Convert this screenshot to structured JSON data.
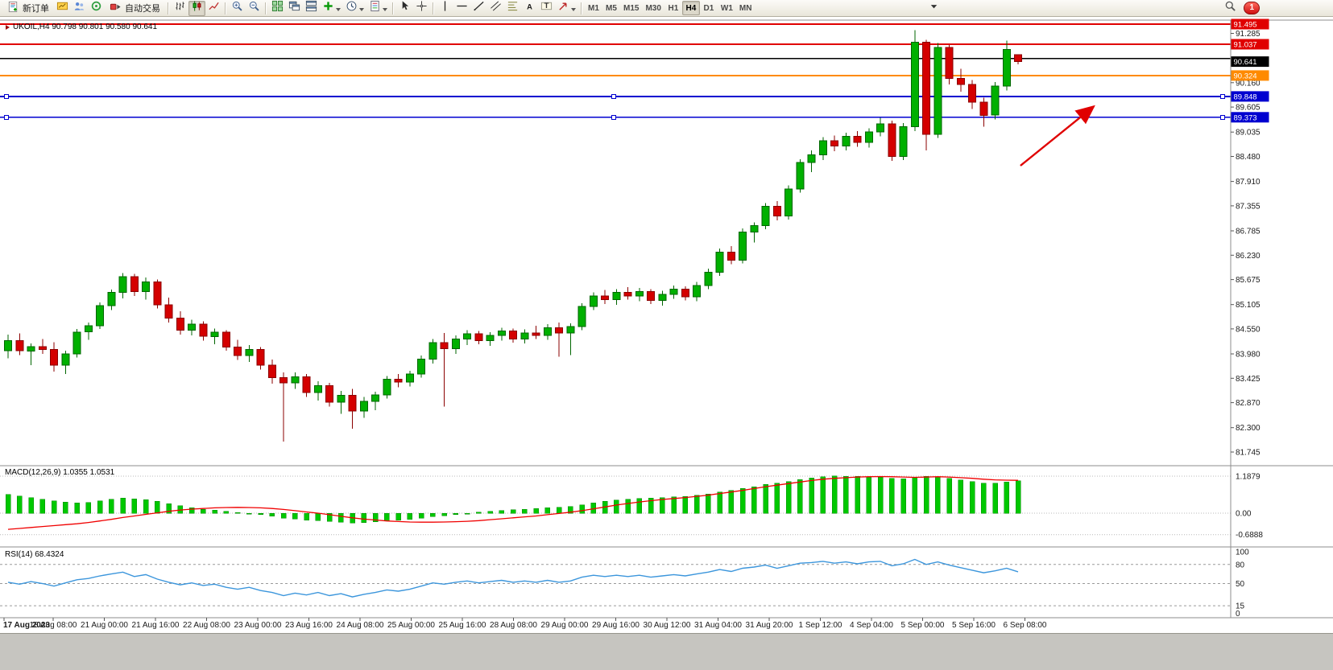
{
  "toolbar": {
    "new_order_label": "新订单",
    "autotrading_label": "自动交易",
    "active_timeframe": "H4",
    "notification_count": "1",
    "items": [
      {
        "kind": "button",
        "name": "new-order-button",
        "icon": "new-order-icon",
        "label": "新订单"
      },
      {
        "kind": "icon",
        "name": "charts-window-button",
        "icon": "chart-window-icon"
      },
      {
        "kind": "icon",
        "name": "market-watch-button",
        "icon": "market-watch-icon"
      },
      {
        "kind": "icon",
        "name": "data-window-button",
        "icon": "data-window-icon"
      },
      {
        "kind": "button",
        "name": "autotrading-button",
        "icon": "autotrading-icon",
        "label": "自动交易"
      },
      {
        "kind": "sep"
      },
      {
        "kind": "icon",
        "name": "bar-chart-button",
        "icon": "bar-chart-icon"
      },
      {
        "kind": "icon",
        "name": "candlestick-chart-button",
        "icon": "candlestick-chart-icon",
        "active": true
      },
      {
        "kind": "icon",
        "name": "line-chart-button",
        "icon": "line-chart-icon"
      },
      {
        "kind": "sep"
      },
      {
        "kind": "icon",
        "name": "zoom-in-button",
        "icon": "zoom-in-icon"
      },
      {
        "kind": "icon",
        "name": "zoom-out-button",
        "icon": "zoom-out-icon"
      },
      {
        "kind": "sep"
      },
      {
        "kind": "icon",
        "name": "tile-windows-button",
        "icon": "tile-windows-icon"
      },
      {
        "kind": "icon",
        "name": "cascade-windows-button",
        "icon": "cascade-windows-icon"
      },
      {
        "kind": "icon",
        "name": "arrange-windows-button",
        "icon": "arrange-windows-icon"
      },
      {
        "kind": "icon",
        "name": "indicators-button",
        "icon": "indicators-icon",
        "caret": true
      },
      {
        "kind": "icon",
        "name": "periods-button",
        "icon": "periods-icon",
        "caret": true
      },
      {
        "kind": "icon",
        "name": "templates-button",
        "icon": "templates-icon",
        "caret": true
      },
      {
        "kind": "sep"
      },
      {
        "kind": "icon",
        "name": "cursor-button",
        "icon": "cursor-icon"
      },
      {
        "kind": "icon",
        "name": "crosshair-button",
        "icon": "crosshair-icon"
      },
      {
        "kind": "sep"
      },
      {
        "kind": "icon",
        "name": "vertical-line-button",
        "icon": "vertical-line-icon"
      },
      {
        "kind": "icon",
        "name": "horizontal-line-button",
        "icon": "horizontal-line-icon"
      },
      {
        "kind": "icon",
        "name": "trendline-button",
        "icon": "trendline-icon"
      },
      {
        "kind": "icon",
        "name": "channel-button",
        "icon": "channel-icon"
      },
      {
        "kind": "icon",
        "name": "fibonacci-button",
        "icon": "fibonacci-icon"
      },
      {
        "kind": "icon",
        "name": "text-button",
        "icon": "text-icon"
      },
      {
        "kind": "icon",
        "name": "text-label-button",
        "icon": "text-label-icon"
      },
      {
        "kind": "icon",
        "name": "shapes-button",
        "icon": "shapes-icon",
        "caret": true
      },
      {
        "kind": "sep"
      },
      {
        "kind": "tf",
        "name": "timeframe-m1-button",
        "label": "M1"
      },
      {
        "kind": "tf",
        "name": "timeframe-m5-button",
        "label": "M5"
      },
      {
        "kind": "tf",
        "name": "timeframe-m15-button",
        "label": "M15"
      },
      {
        "kind": "tf",
        "name": "timeframe-m30-button",
        "label": "M30"
      },
      {
        "kind": "tf",
        "name": "timeframe-h1-button",
        "label": "H1"
      },
      {
        "kind": "tf",
        "name": "timeframe-h4-button",
        "label": "H4"
      },
      {
        "kind": "tf",
        "name": "timeframe-d1-button",
        "label": "D1"
      },
      {
        "kind": "tf",
        "name": "timeframe-w1-button",
        "label": "W1"
      },
      {
        "kind": "tf",
        "name": "timeframe-mn-button",
        "label": "MN"
      },
      {
        "kind": "overflow",
        "name": "toolbar-overflow-button",
        "icon": "chevron-down-icon"
      },
      {
        "kind": "icon",
        "name": "search-button",
        "icon": "search-icon",
        "right": true
      },
      {
        "kind": "badge",
        "name": "notifications-badge",
        "label": "1"
      }
    ]
  },
  "chart": {
    "title": "UKOIL,H4 90.798 90.801 90.580 90.641"
  },
  "indicators": {
    "macd_header": "MACD(12,26,9) 1.0355 1.0531",
    "rsi_header": "RSI(14) 68.4324"
  },
  "chart_data": {
    "type": "candlestick",
    "symbol": "UKOIL",
    "period": "H4",
    "ohlc_current": {
      "open": 90.798,
      "high": 90.801,
      "low": 90.58,
      "close": 90.641
    },
    "current_price": 90.641,
    "price_range": [
      81.745,
      91.495
    ],
    "price_axis_ticks": [
      91.285,
      90.16,
      89.605,
      89.035,
      88.48,
      87.91,
      87.355,
      86.785,
      86.23,
      85.675,
      85.105,
      84.55,
      83.98,
      83.425,
      82.87,
      82.3,
      81.745
    ],
    "lines": [
      {
        "price": 91.495,
        "color": "#e00000",
        "width": 2.2,
        "label": true
      },
      {
        "price": 91.037,
        "color": "#e00000",
        "width": 1.6,
        "label": true
      },
      {
        "price": 90.71,
        "color": "#000000",
        "width": 1.6,
        "label": false
      },
      {
        "price": 90.324,
        "color": "#ff8a00",
        "width": 2.0,
        "label": true
      },
      {
        "price": 89.848,
        "color": "#0000d0",
        "width": 1.8,
        "label": true,
        "handles": true
      },
      {
        "price": 89.373,
        "color": "#0000d0",
        "width": 1.8,
        "label": true,
        "handles": true
      }
    ],
    "annotations": [
      {
        "type": "arrow",
        "color": "#e00000",
        "from": {
          "index": 88.2,
          "price": 88.27
        },
        "to": {
          "index": 94.6,
          "price": 89.62
        }
      }
    ],
    "time_labels": [
      "17 Aug 2023",
      "18 Aug 08:00",
      "21 Aug 00:00",
      "21 Aug 16:00",
      "22 Aug 08:00",
      "23 Aug 00:00",
      "23 Aug 16:00",
      "24 Aug 08:00",
      "25 Aug 00:00",
      "25 Aug 16:00",
      "28 Aug 08:00",
      "29 Aug 00:00",
      "29 Aug 16:00",
      "30 Aug 12:00",
      "31 Aug 04:00",
      "31 Aug 20:00",
      "1 Sep 12:00",
      "4 Sep 04:00",
      "5 Sep 00:00",
      "5 Sep 16:00",
      "6 Sep 08:00"
    ],
    "candles": [
      [
        84.05,
        84.42,
        83.88,
        84.28
      ],
      [
        84.28,
        84.45,
        83.95,
        84.05
      ],
      [
        84.05,
        84.22,
        83.72,
        84.15
      ],
      [
        84.15,
        84.32,
        83.98,
        84.08
      ],
      [
        84.08,
        84.25,
        83.58,
        83.72
      ],
      [
        83.72,
        84.05,
        83.52,
        83.98
      ],
      [
        83.98,
        84.55,
        83.9,
        84.48
      ],
      [
        84.48,
        84.7,
        84.3,
        84.62
      ],
      [
        84.62,
        85.15,
        84.55,
        85.08
      ],
      [
        85.08,
        85.45,
        84.98,
        85.38
      ],
      [
        85.38,
        85.82,
        85.25,
        85.74
      ],
      [
        85.74,
        85.8,
        85.3,
        85.4
      ],
      [
        85.4,
        85.72,
        85.22,
        85.62
      ],
      [
        85.62,
        85.68,
        85.02,
        85.1
      ],
      [
        85.1,
        85.26,
        84.7,
        84.8
      ],
      [
        84.8,
        84.95,
        84.42,
        84.52
      ],
      [
        84.52,
        84.76,
        84.4,
        84.66
      ],
      [
        84.66,
        84.72,
        84.28,
        84.38
      ],
      [
        84.38,
        84.56,
        84.2,
        84.48
      ],
      [
        84.48,
        84.52,
        84.05,
        84.14
      ],
      [
        84.14,
        84.3,
        83.84,
        83.94
      ],
      [
        83.94,
        84.18,
        83.8,
        84.08
      ],
      [
        84.08,
        84.14,
        83.62,
        83.72
      ],
      [
        83.72,
        83.85,
        83.3,
        83.44
      ],
      [
        83.44,
        83.56,
        81.98,
        83.32
      ],
      [
        83.32,
        83.56,
        83.18,
        83.46
      ],
      [
        83.46,
        83.52,
        83.0,
        83.1
      ],
      [
        83.1,
        83.36,
        82.92,
        83.26
      ],
      [
        83.26,
        83.32,
        82.78,
        82.88
      ],
      [
        82.88,
        83.14,
        82.62,
        83.04
      ],
      [
        83.04,
        83.18,
        82.28,
        82.68
      ],
      [
        82.68,
        83.0,
        82.52,
        82.9
      ],
      [
        82.9,
        83.12,
        82.7,
        83.05
      ],
      [
        83.05,
        83.48,
        82.96,
        83.4
      ],
      [
        83.4,
        83.52,
        83.22,
        83.34
      ],
      [
        83.34,
        83.6,
        83.24,
        83.52
      ],
      [
        83.52,
        83.94,
        83.44,
        83.86
      ],
      [
        83.86,
        84.32,
        83.76,
        84.24
      ],
      [
        84.24,
        84.46,
        82.78,
        84.1
      ],
      [
        84.1,
        84.4,
        83.98,
        84.32
      ],
      [
        84.32,
        84.52,
        84.18,
        84.44
      ],
      [
        84.44,
        84.5,
        84.2,
        84.28
      ],
      [
        84.28,
        84.48,
        84.16,
        84.4
      ],
      [
        84.4,
        84.58,
        84.28,
        84.5
      ],
      [
        84.5,
        84.56,
        84.24,
        84.32
      ],
      [
        84.32,
        84.54,
        84.22,
        84.46
      ],
      [
        84.46,
        84.62,
        84.32,
        84.4
      ],
      [
        84.4,
        84.66,
        84.3,
        84.58
      ],
      [
        84.58,
        84.7,
        83.92,
        84.46
      ],
      [
        84.46,
        84.68,
        83.95,
        84.6
      ],
      [
        84.6,
        85.14,
        84.52,
        85.06
      ],
      [
        85.06,
        85.38,
        84.98,
        85.3
      ],
      [
        85.3,
        85.44,
        85.12,
        85.22
      ],
      [
        85.22,
        85.46,
        85.1,
        85.38
      ],
      [
        85.38,
        85.5,
        85.22,
        85.3
      ],
      [
        85.3,
        85.48,
        85.18,
        85.4
      ],
      [
        85.4,
        85.46,
        85.12,
        85.2
      ],
      [
        85.2,
        85.42,
        85.08,
        85.34
      ],
      [
        85.34,
        85.54,
        85.24,
        85.46
      ],
      [
        85.46,
        85.52,
        85.2,
        85.28
      ],
      [
        85.28,
        85.62,
        85.18,
        85.54
      ],
      [
        85.54,
        85.92,
        85.46,
        85.84
      ],
      [
        85.84,
        86.38,
        85.76,
        86.3
      ],
      [
        86.3,
        86.44,
        86.02,
        86.12
      ],
      [
        86.12,
        86.84,
        86.04,
        86.76
      ],
      [
        86.76,
        86.98,
        86.52,
        86.9
      ],
      [
        86.9,
        87.42,
        86.82,
        87.34
      ],
      [
        87.34,
        87.46,
        87.02,
        87.12
      ],
      [
        87.12,
        87.82,
        87.04,
        87.74
      ],
      [
        87.74,
        88.42,
        87.66,
        88.34
      ],
      [
        88.34,
        88.62,
        88.12,
        88.52
      ],
      [
        88.52,
        88.92,
        88.4,
        88.84
      ],
      [
        88.84,
        88.96,
        88.6,
        88.72
      ],
      [
        88.72,
        89.02,
        88.62,
        88.94
      ],
      [
        88.94,
        89.06,
        88.7,
        88.8
      ],
      [
        88.8,
        89.12,
        88.68,
        89.04
      ],
      [
        89.04,
        89.36,
        88.94,
        89.22
      ],
      [
        89.22,
        89.3,
        88.38,
        88.48
      ],
      [
        88.48,
        89.24,
        88.4,
        89.16
      ],
      [
        89.16,
        91.36,
        89.06,
        91.08
      ],
      [
        91.08,
        91.14,
        88.62,
        88.98
      ],
      [
        88.98,
        91.06,
        88.9,
        90.96
      ],
      [
        90.96,
        91.02,
        90.12,
        90.26
      ],
      [
        90.26,
        90.48,
        89.96,
        90.12
      ],
      [
        90.12,
        90.22,
        89.56,
        89.72
      ],
      [
        89.72,
        89.82,
        89.16,
        89.42
      ],
      [
        89.42,
        90.18,
        89.32,
        90.08
      ],
      [
        90.08,
        91.12,
        89.98,
        90.92
      ],
      [
        90.798,
        90.801,
        90.58,
        90.641
      ]
    ],
    "macd": {
      "name": "MACD",
      "params": "12,26,9",
      "value": 1.0355,
      "signal_value": 1.0531,
      "scale": [
        {
          "v": 1.1879,
          "label": "1.1879"
        },
        {
          "v": 0,
          "label": "0.00"
        },
        {
          "v": -0.6888,
          "label": "-0.6888"
        }
      ],
      "histogram": [
        0.6,
        0.55,
        0.5,
        0.45,
        0.4,
        0.36,
        0.33,
        0.35,
        0.4,
        0.45,
        0.48,
        0.46,
        0.43,
        0.38,
        0.31,
        0.24,
        0.18,
        0.13,
        0.1,
        0.06,
        0.02,
        -0.01,
        -0.05,
        -0.1,
        -0.16,
        -0.19,
        -0.22,
        -0.24,
        -0.27,
        -0.29,
        -0.31,
        -0.3,
        -0.28,
        -0.25,
        -0.22,
        -0.2,
        -0.16,
        -0.11,
        -0.08,
        -0.04,
        0.0,
        0.03,
        0.06,
        0.09,
        0.11,
        0.13,
        0.15,
        0.17,
        0.19,
        0.22,
        0.27,
        0.33,
        0.38,
        0.42,
        0.45,
        0.47,
        0.48,
        0.5,
        0.52,
        0.54,
        0.57,
        0.62,
        0.68,
        0.73,
        0.79,
        0.85,
        0.92,
        0.96,
        1.01,
        1.08,
        1.13,
        1.17,
        1.19,
        1.185,
        1.18,
        1.17,
        1.16,
        1.12,
        1.1,
        1.15,
        1.18,
        1.16,
        1.12,
        1.07,
        1.02,
        0.97,
        0.96,
        1.0,
        1.0355
      ],
      "signal": [
        -0.52,
        -0.49,
        -0.46,
        -0.43,
        -0.4,
        -0.37,
        -0.34,
        -0.3,
        -0.25,
        -0.2,
        -0.14,
        -0.09,
        -0.04,
        0.01,
        0.06,
        0.1,
        0.13,
        0.15,
        0.17,
        0.18,
        0.185,
        0.18,
        0.17,
        0.15,
        0.12,
        0.08,
        0.04,
        0.0,
        -0.05,
        -0.1,
        -0.15,
        -0.19,
        -0.22,
        -0.25,
        -0.27,
        -0.285,
        -0.29,
        -0.29,
        -0.285,
        -0.275,
        -0.26,
        -0.24,
        -0.21,
        -0.18,
        -0.15,
        -0.12,
        -0.09,
        -0.05,
        -0.01,
        0.03,
        0.08,
        0.14,
        0.2,
        0.26,
        0.31,
        0.36,
        0.4,
        0.44,
        0.47,
        0.5,
        0.54,
        0.58,
        0.63,
        0.68,
        0.73,
        0.79,
        0.85,
        0.9,
        0.95,
        1.0,
        1.05,
        1.09,
        1.12,
        1.14,
        1.16,
        1.17,
        1.175,
        1.17,
        1.16,
        1.15,
        1.16,
        1.17,
        1.16,
        1.14,
        1.12,
        1.09,
        1.07,
        1.06,
        1.0531
      ]
    },
    "rsi": {
      "name": "RSI",
      "params": "14",
      "value": 68.4324,
      "scale": [
        {
          "v": 100,
          "label": "100"
        },
        {
          "v": 80,
          "label": "80"
        },
        {
          "v": 50,
          "label": "50"
        },
        {
          "v": 15,
          "label": "15"
        },
        {
          "v": 0,
          "label": "0"
        }
      ],
      "levels": [
        80,
        50,
        15
      ],
      "values": [
        52,
        49,
        53,
        50,
        46,
        51,
        56,
        58,
        62,
        65,
        68,
        61,
        64,
        57,
        52,
        48,
        51,
        47,
        49,
        44,
        41,
        44,
        39,
        36,
        31,
        35,
        32,
        36,
        31,
        34,
        29,
        33,
        36,
        40,
        38,
        41,
        46,
        51,
        49,
        52,
        54,
        51,
        53,
        55,
        52,
        54,
        52,
        55,
        52,
        54,
        60,
        63,
        61,
        63,
        61,
        63,
        60,
        62,
        64,
        62,
        65,
        68,
        72,
        69,
        74,
        76,
        79,
        74,
        78,
        82,
        83,
        85,
        82,
        84,
        81,
        84,
        85,
        78,
        81,
        88,
        80,
        84,
        79,
        75,
        71,
        67,
        70,
        74,
        68.4324
      ]
    }
  }
}
